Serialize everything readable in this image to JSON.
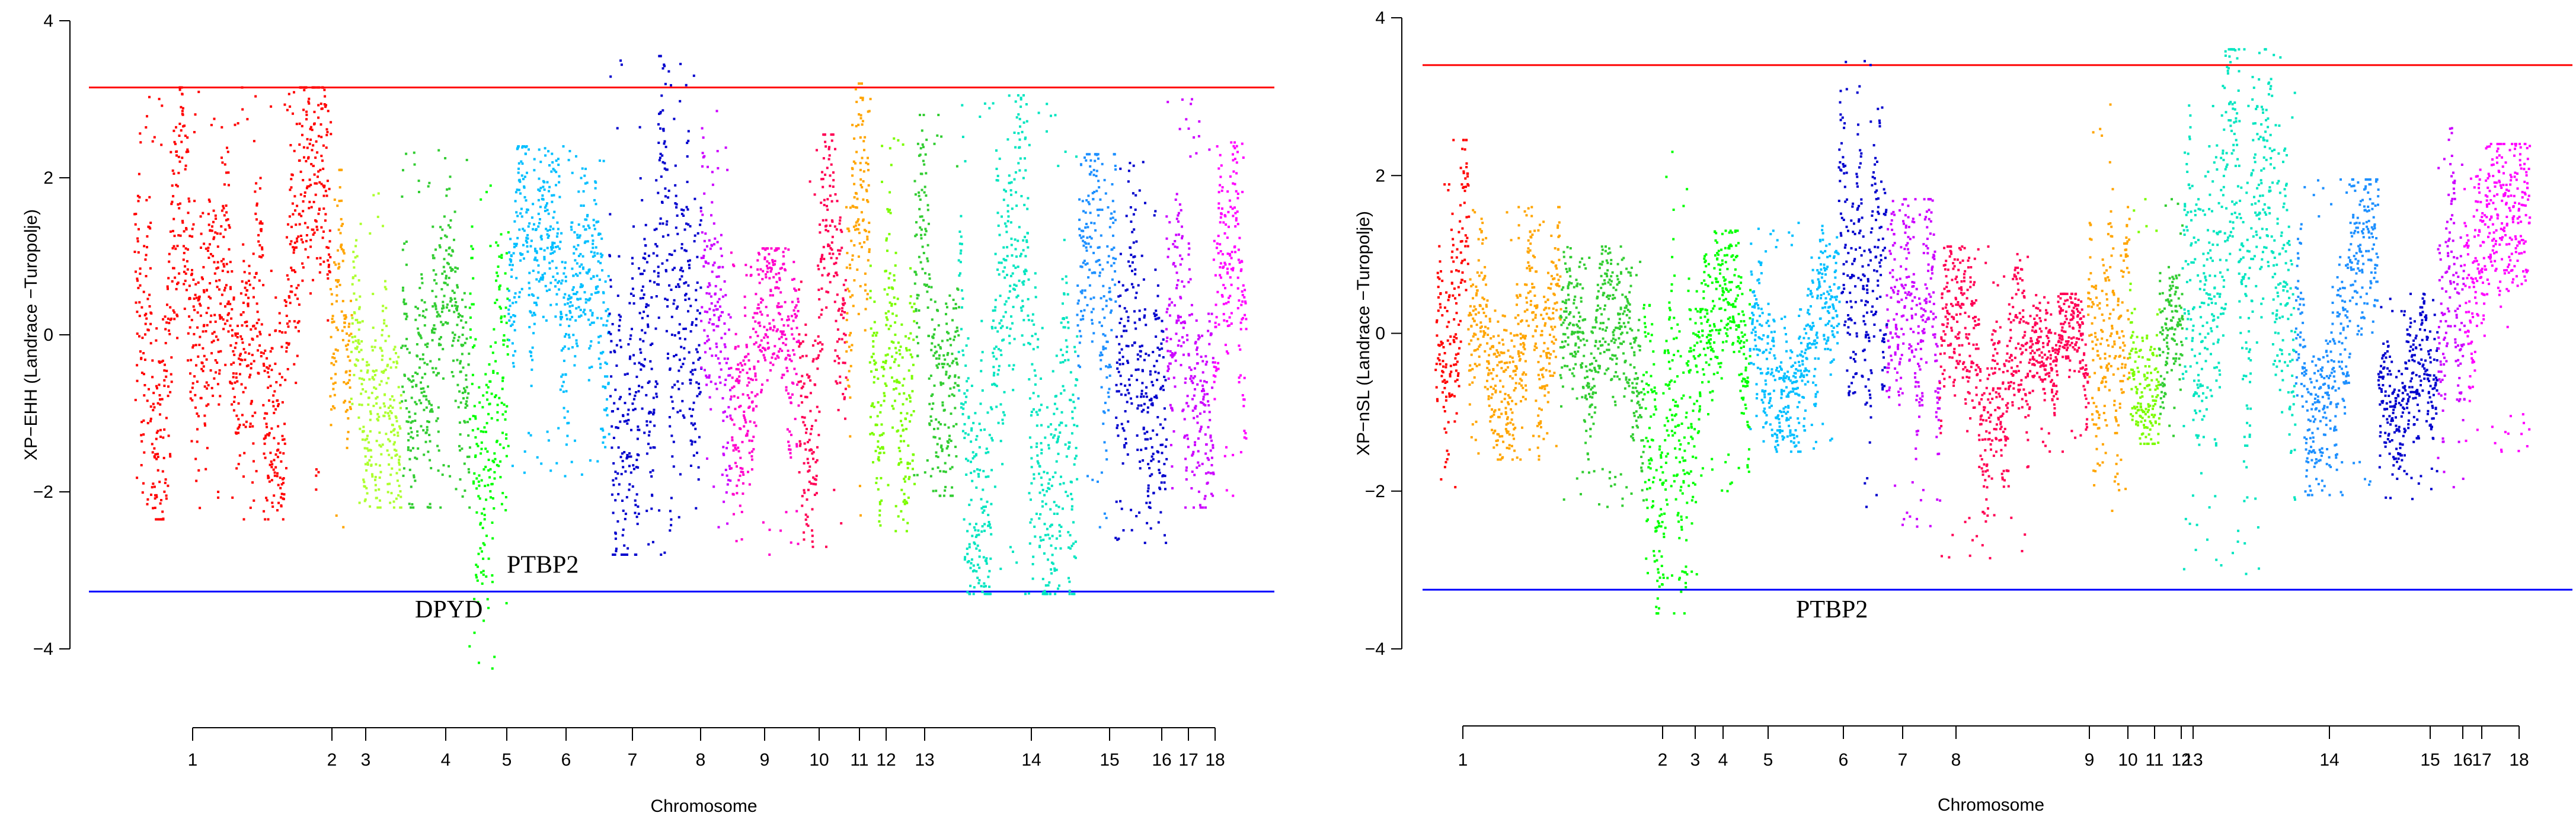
{
  "chart_data": [
    {
      "type": "scatter",
      "ylabel": "XP−EHH (Landrace −Turopolje)",
      "xlabel": "Chromosome",
      "ylim": [
        -4,
        4
      ],
      "yticks": [
        4,
        2,
        0,
        -2,
        -4
      ],
      "y_tick_labels": [
        "4",
        "2",
        "0",
        "−2",
        "−4"
      ],
      "threshold_upper": 3.15,
      "threshold_lower": -3.27,
      "threshold_upper_color": "#ff0000",
      "threshold_lower_color": "#0000ff",
      "chromosomes": [
        {
          "label": "1",
          "color": "#ff0000",
          "min": -2.35,
          "max": 3.15
        },
        {
          "label": "2",
          "color": "#ffa500",
          "min": -2.45,
          "max": 2.1
        },
        {
          "label": "3",
          "color": "#adff2f",
          "min": -2.2,
          "max": 1.8
        },
        {
          "label": "4",
          "color": "#32cd32",
          "min": -2.2,
          "max": 2.35
        },
        {
          "label": "5",
          "color": "#00ff00",
          "min": -4.25,
          "max": 1.9
        },
        {
          "label": "6",
          "color": "#00bfff",
          "min": -1.8,
          "max": 2.4
        },
        {
          "label": "7",
          "color": "#0000cd",
          "min": -2.8,
          "max": 3.55
        },
        {
          "label": "8",
          "color": "#cc00ff",
          "min": -2.45,
          "max": 2.85
        },
        {
          "label": "9",
          "color": "#ff00cc",
          "min": -2.8,
          "max": 1.1
        },
        {
          "label": "10",
          "color": "#ff0055",
          "min": -2.7,
          "max": 2.55
        },
        {
          "label": "11",
          "color": "#ffa500",
          "min": -2.3,
          "max": 3.2
        },
        {
          "label": "12",
          "color": "#7cfc00",
          "min": -2.5,
          "max": 2.5
        },
        {
          "label": "13",
          "color": "#32cd32",
          "min": -2.05,
          "max": 2.8
        },
        {
          "label": "14",
          "color": "#00e5c0",
          "min": -3.3,
          "max": 3.05
        },
        {
          "label": "15",
          "color": "#1e90ff",
          "min": -2.45,
          "max": 2.3
        },
        {
          "label": "16",
          "color": "#0000cd",
          "min": -2.65,
          "max": 2.2
        },
        {
          "label": "17",
          "color": "#cc00ff",
          "min": -2.2,
          "max": 3.0
        },
        {
          "label": "18",
          "color": "#ff00ff",
          "min": -2.05,
          "max": 2.45
        }
      ],
      "annotations": [
        {
          "text": "DPYD",
          "chromosome": "4",
          "y": -3.6
        },
        {
          "text": "PTBP2",
          "chromosome": "5",
          "y": -3.03
        }
      ]
    },
    {
      "type": "scatter",
      "ylabel": "XP−nSL (Landrace −Turopolje)",
      "xlabel": "Chromosome",
      "ylim": [
        -4,
        4
      ],
      "yticks": [
        4,
        2,
        0,
        -2,
        -4
      ],
      "y_tick_labels": [
        "4",
        "2",
        "0",
        "−2",
        "−4"
      ],
      "threshold_upper": 3.4,
      "threshold_lower": -3.25,
      "threshold_upper_color": "#ff0000",
      "threshold_lower_color": "#0000ff",
      "chromosomes": [
        {
          "label": "1",
          "color": "#ff0000",
          "min": -1.95,
          "max": 2.45
        },
        {
          "label": "2",
          "color": "#ffa500",
          "min": -1.6,
          "max": 1.6
        },
        {
          "label": "3",
          "color": "#32cd32",
          "min": -2.2,
          "max": 1.1
        },
        {
          "label": "4",
          "color": "#00ff00",
          "min": -3.55,
          "max": 2.3
        },
        {
          "label": "5",
          "color": "#00ff00",
          "min": -2.0,
          "max": 1.3
        },
        {
          "label": "6",
          "color": "#00bfff",
          "min": -1.5,
          "max": 1.4
        },
        {
          "label": "7",
          "color": "#0000cd",
          "min": -2.2,
          "max": 3.45
        },
        {
          "label": "8",
          "color": "#cc00ff",
          "min": -2.45,
          "max": 1.7
        },
        {
          "label": "9",
          "color": "#ff0055",
          "min": -2.85,
          "max": 1.1
        },
        {
          "label": "10",
          "color": "#ff0055",
          "min": -1.5,
          "max": 0.5
        },
        {
          "label": "11",
          "color": "#ffa500",
          "min": -2.25,
          "max": 2.9
        },
        {
          "label": "12",
          "color": "#7cfc00",
          "min": -1.4,
          "max": 1.7
        },
        {
          "label": "13",
          "color": "#32cd32",
          "min": -1.3,
          "max": 1.7
        },
        {
          "label": "14",
          "color": "#00e5c0",
          "min": -3.05,
          "max": 3.6
        },
        {
          "label": "15",
          "color": "#1e90ff",
          "min": -2.05,
          "max": 1.95
        },
        {
          "label": "16",
          "color": "#0000cd",
          "min": -2.1,
          "max": 0.5
        },
        {
          "label": "17",
          "color": "#cc00ff",
          "min": -1.95,
          "max": 2.6
        },
        {
          "label": "18",
          "color": "#ff00ff",
          "min": -1.5,
          "max": 2.4
        }
      ],
      "annotations": [
        {
          "text": "PTBP2",
          "chromosome": "4",
          "y": -3.6
        }
      ]
    }
  ]
}
